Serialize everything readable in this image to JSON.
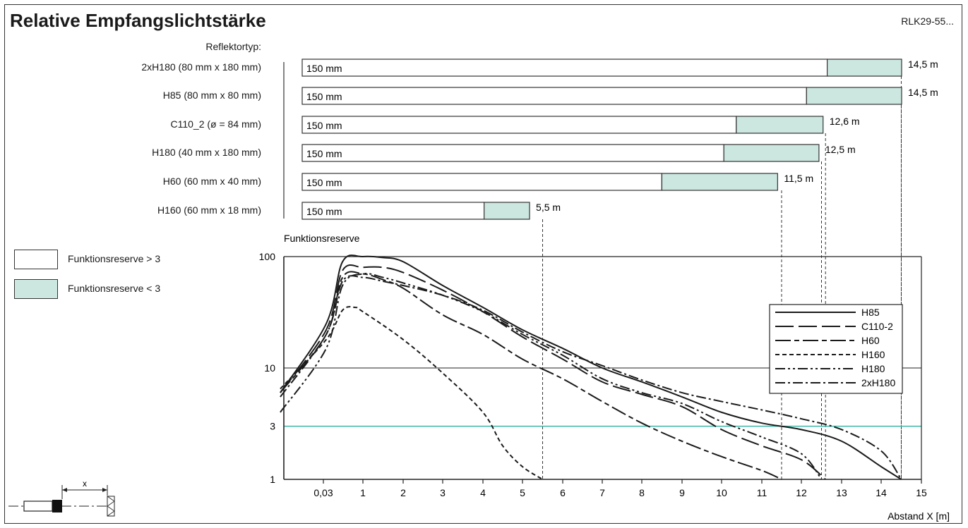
{
  "title": "Relative Empfangslichtstärke",
  "code": "RLK29-55...",
  "reflector_header": "Reflektortyp:",
  "colors": {
    "reserve_low": "#cce6e0",
    "threshold_line": "#3ab7a8",
    "frame": "#333333"
  },
  "legend": [
    {
      "label": "Funktionsreserve > 3",
      "color": "#ffffff"
    },
    {
      "label": "Funktionsreserve < 3",
      "color": "#cce6e0"
    }
  ],
  "chart_data": [
    {
      "type": "bar",
      "subtype": "range-bars",
      "unit": "m",
      "rows": [
        {
          "reflector": "2xH180 (80 mm x 180 mm)",
          "start_label": "150 mm",
          "start": 0.15,
          "reserve3_end": 12.7,
          "end": 14.5,
          "end_label": "14,5 m"
        },
        {
          "reflector": "H85 (80 mm x 80 mm)",
          "start_label": "150 mm",
          "start": 0.15,
          "reserve3_end": 12.2,
          "end": 14.5,
          "end_label": "14,5 m"
        },
        {
          "reflector": "C110_2 (ø = 84 mm)",
          "start_label": "150 mm",
          "start": 0.15,
          "reserve3_end": 10.5,
          "end": 12.6,
          "end_label": "12,6 m"
        },
        {
          "reflector": "H180 (40 mm x 180 mm)",
          "start_label": "150 mm",
          "start": 0.15,
          "reserve3_end": 10.2,
          "end": 12.5,
          "end_label": "12,5 m"
        },
        {
          "reflector": "H60 (60 mm x 40 mm)",
          "start_label": "150 mm",
          "start": 0.15,
          "reserve3_end": 8.7,
          "end": 11.5,
          "end_label": "11,5 m"
        },
        {
          "reflector": "H160 (60 mm x 18 mm)",
          "start_label": "150 mm",
          "start": 0.15,
          "reserve3_end": 4.4,
          "end": 5.5,
          "end_label": "5,5 m"
        }
      ]
    },
    {
      "type": "line",
      "ylabel": "Funktionsreserve",
      "xlabel": "Abstand X [m]",
      "yscale": "log",
      "ylim": [
        1,
        100
      ],
      "ytick_labels": [
        "1",
        "3",
        "10",
        "100"
      ],
      "ytick_values": [
        1,
        3,
        10,
        100
      ],
      "xtick_labels": [
        "0,03",
        "1",
        "2",
        "3",
        "4",
        "5",
        "6",
        "7",
        "8",
        "9",
        "10",
        "11",
        "12",
        "13",
        "14",
        "15"
      ],
      "xtick_values": [
        0.03,
        1,
        2,
        3,
        4,
        5,
        6,
        7,
        8,
        9,
        10,
        11,
        12,
        13,
        14,
        15
      ],
      "threshold": 3,
      "series": [
        {
          "name": "H85",
          "dash": "solid",
          "points": [
            [
              -0.3,
              6
            ],
            [
              0.1,
              25
            ],
            [
              0.5,
              90
            ],
            [
              1,
              100
            ],
            [
              1.5,
              98
            ],
            [
              2,
              90
            ],
            [
              3,
              55
            ],
            [
              4,
              35
            ],
            [
              5,
              22
            ],
            [
              6,
              15
            ],
            [
              7,
              10
            ],
            [
              8,
              7.5
            ],
            [
              9,
              5.5
            ],
            [
              10,
              4
            ],
            [
              11,
              3.2
            ],
            [
              12,
              2.8
            ],
            [
              13,
              2.2
            ],
            [
              14,
              1.3
            ],
            [
              14.5,
              1
            ]
          ]
        },
        {
          "name": "C110-2",
          "dash": "long",
          "points": [
            [
              -0.3,
              6
            ],
            [
              0.1,
              22
            ],
            [
              0.5,
              75
            ],
            [
              1,
              80
            ],
            [
              1.5,
              80
            ],
            [
              2,
              72
            ],
            [
              3,
              50
            ],
            [
              4,
              32
            ],
            [
              5,
              19
            ],
            [
              6,
              12
            ],
            [
              7,
              7.5
            ],
            [
              8,
              5.8
            ],
            [
              9,
              4.5
            ],
            [
              10,
              2.8
            ],
            [
              11,
              2.0
            ],
            [
              12,
              1.5
            ],
            [
              12.6,
              1
            ]
          ]
        },
        {
          "name": "H60",
          "dash": "longshort",
          "points": [
            [
              -0.3,
              6
            ],
            [
              0.1,
              20
            ],
            [
              0.5,
              65
            ],
            [
              1,
              70
            ],
            [
              1.5,
              62
            ],
            [
              2,
              52
            ],
            [
              3,
              30
            ],
            [
              4,
              20
            ],
            [
              5,
              12
            ],
            [
              6,
              8
            ],
            [
              7,
              5
            ],
            [
              8,
              3.2
            ],
            [
              9,
              2.2
            ],
            [
              10,
              1.6
            ],
            [
              11,
              1.2
            ],
            [
              11.5,
              1
            ]
          ]
        },
        {
          "name": "H160",
          "dash": "short",
          "points": [
            [
              -0.3,
              6.5
            ],
            [
              0.1,
              18
            ],
            [
              0.5,
              33
            ],
            [
              0.8,
              35
            ],
            [
              1,
              32
            ],
            [
              2,
              18
            ],
            [
              3,
              9
            ],
            [
              4,
              4
            ],
            [
              4.5,
              2
            ],
            [
              5,
              1.3
            ],
            [
              5.5,
              1
            ]
          ]
        },
        {
          "name": "H180",
          "dash": "dashdotdot",
          "points": [
            [
              -0.3,
              4
            ],
            [
              0.1,
              15
            ],
            [
              0.5,
              55
            ],
            [
              1,
              70
            ],
            [
              1.5,
              65
            ],
            [
              2,
              58
            ],
            [
              3,
              45
            ],
            [
              4,
              32
            ],
            [
              5,
              20
            ],
            [
              6,
              13
            ],
            [
              7,
              8
            ],
            [
              8,
              6
            ],
            [
              9,
              4.8
            ],
            [
              10,
              3.3
            ],
            [
              11,
              2.4
            ],
            [
              12,
              1.7
            ],
            [
              12.5,
              1
            ]
          ]
        },
        {
          "name": "2xH180",
          "dash": "dashdot",
          "points": [
            [
              -0.3,
              5.5
            ],
            [
              0.1,
              20
            ],
            [
              0.5,
              60
            ],
            [
              1,
              65
            ],
            [
              1.5,
              60
            ],
            [
              2,
              55
            ],
            [
              3,
              45
            ],
            [
              4,
              33
            ],
            [
              5,
              21
            ],
            [
              6,
              14
            ],
            [
              7,
              10.5
            ],
            [
              8,
              7.8
            ],
            [
              9,
              6
            ],
            [
              10,
              5
            ],
            [
              11,
              4.2
            ],
            [
              12,
              3.5
            ],
            [
              13,
              2.8
            ],
            [
              14,
              1.8
            ],
            [
              14.5,
              1
            ]
          ]
        }
      ]
    }
  ]
}
